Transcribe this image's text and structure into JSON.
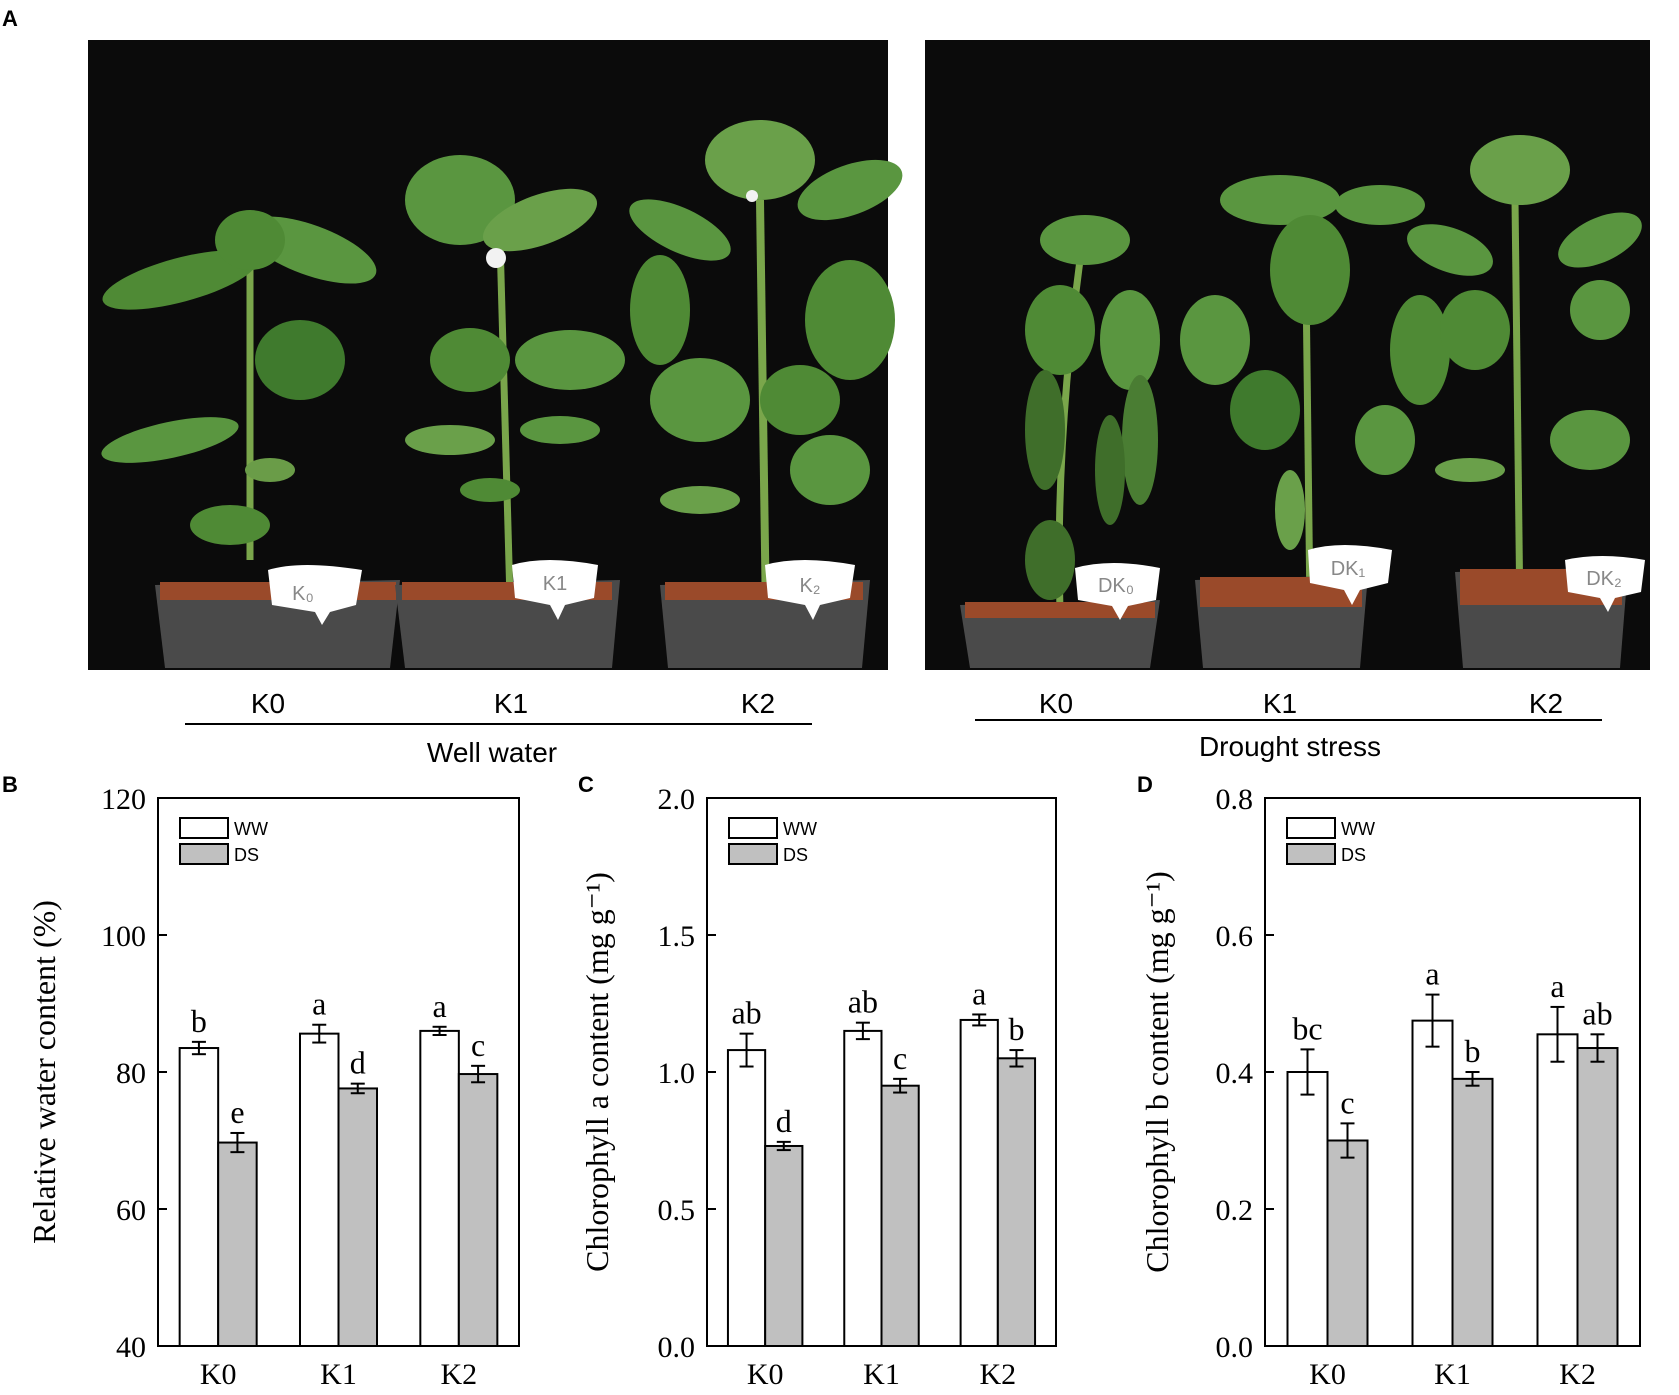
{
  "panel_a": {
    "letter": "A",
    "groups": [
      {
        "condition": "Well water",
        "treatments": [
          "K0",
          "K1",
          "K2"
        ],
        "pot_tags": [
          "K₀",
          "K1",
          "K₂"
        ]
      },
      {
        "condition": "Drought stress",
        "treatments": [
          "K0",
          "K1",
          "K2"
        ],
        "pot_tags": [
          "DK₀",
          "DK₁",
          "DK₂"
        ]
      }
    ]
  },
  "colors": {
    "ww_fill": "#ffffff",
    "ds_fill": "#c0c0c0",
    "frame": "#000000",
    "photo_bg": "#0b0b0b",
    "leaf": "#4f8a35",
    "stem": "#7aa64b",
    "soil": "#9a4a2a",
    "pot": "#4a4a4a"
  },
  "chart_data": [
    {
      "letter": "B",
      "type": "bar",
      "ylabel": "Relative water content (%)",
      "ylim": [
        40,
        120
      ],
      "yticks": [
        "40",
        "60",
        "80",
        "100",
        "120"
      ],
      "ytick_values": [
        40,
        60,
        80,
        100,
        120
      ],
      "categories": [
        "K0",
        "K1",
        "K2"
      ],
      "legend": [
        "WW",
        "DS"
      ],
      "legend_position": "top-left",
      "series": [
        {
          "name": "WW",
          "values": [
            83.5,
            85.6,
            86.0
          ],
          "errors": [
            0.9,
            1.3,
            0.6
          ],
          "letters": [
            "b",
            "a",
            "a"
          ]
        },
        {
          "name": "DS",
          "values": [
            69.7,
            77.6,
            79.7
          ],
          "errors": [
            1.4,
            0.7,
            1.2
          ],
          "letters": [
            "e",
            "d",
            "c"
          ]
        }
      ]
    },
    {
      "letter": "C",
      "type": "bar",
      "ylabel": "Chlorophyll a content (mg g⁻¹)",
      "ylim": [
        0,
        2.0
      ],
      "yticks": [
        "0.0",
        "0.5",
        "1.0",
        "1.5",
        "2.0"
      ],
      "ytick_values": [
        0,
        0.5,
        1.0,
        1.5,
        2.0
      ],
      "categories": [
        "K0",
        "K1",
        "K2"
      ],
      "legend": [
        "WW",
        "DS"
      ],
      "legend_position": "top-left",
      "series": [
        {
          "name": "WW",
          "values": [
            1.08,
            1.15,
            1.19
          ],
          "errors": [
            0.06,
            0.03,
            0.02
          ],
          "letters": [
            "ab",
            "ab",
            "a"
          ]
        },
        {
          "name": "DS",
          "values": [
            0.73,
            0.95,
            1.05
          ],
          "errors": [
            0.015,
            0.025,
            0.03
          ],
          "letters": [
            "d",
            "c",
            "b"
          ]
        }
      ]
    },
    {
      "letter": "D",
      "type": "bar",
      "ylabel": "Chlorophyll b content (mg g⁻¹)",
      "ylim": [
        0,
        0.8
      ],
      "yticks": [
        "0.0",
        "0.2",
        "0.4",
        "0.6",
        "0.8"
      ],
      "ytick_values": [
        0,
        0.2,
        0.4,
        0.6,
        0.8
      ],
      "categories": [
        "K0",
        "K1",
        "K2"
      ],
      "legend": [
        "WW",
        "DS"
      ],
      "legend_position": "top-left",
      "series": [
        {
          "name": "WW",
          "values": [
            0.4,
            0.475,
            0.455
          ],
          "errors": [
            0.033,
            0.038,
            0.04
          ],
          "letters": [
            "bc",
            "a",
            "a"
          ]
        },
        {
          "name": "DS",
          "values": [
            0.3,
            0.39,
            0.435
          ],
          "errors": [
            0.025,
            0.01,
            0.02
          ],
          "letters": [
            "c",
            "b",
            "ab"
          ]
        }
      ]
    }
  ]
}
